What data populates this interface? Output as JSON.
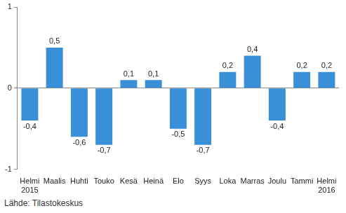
{
  "chart_data": {
    "type": "bar",
    "categories": [
      [
        "Helmi",
        "2015"
      ],
      "Maalis",
      "Huhti",
      "Touko",
      "Kesä",
      "Heinä",
      "Elo",
      "Syys",
      "Loka",
      "Marras",
      "Joulu",
      "Tammi",
      [
        "Helmi",
        "2016"
      ]
    ],
    "values": [
      -0.4,
      0.5,
      -0.6,
      -0.7,
      0.1,
      0.1,
      -0.5,
      -0.7,
      0.2,
      0.4,
      -0.4,
      0.2,
      0.2
    ],
    "value_labels": [
      "-0,4",
      "0,5",
      "-0,6",
      "-0,7",
      "0,1",
      "0,1",
      "-0,5",
      "-0,7",
      "0,2",
      "0,4",
      "-0,4",
      "0,2",
      "0,2"
    ],
    "data_labels": true,
    "color": "#3a8fd9",
    "ylim": [
      -1,
      1
    ],
    "yticks": [
      -1,
      0,
      1
    ],
    "grid": false,
    "source": "Lähde: Tilastokeskus"
  }
}
